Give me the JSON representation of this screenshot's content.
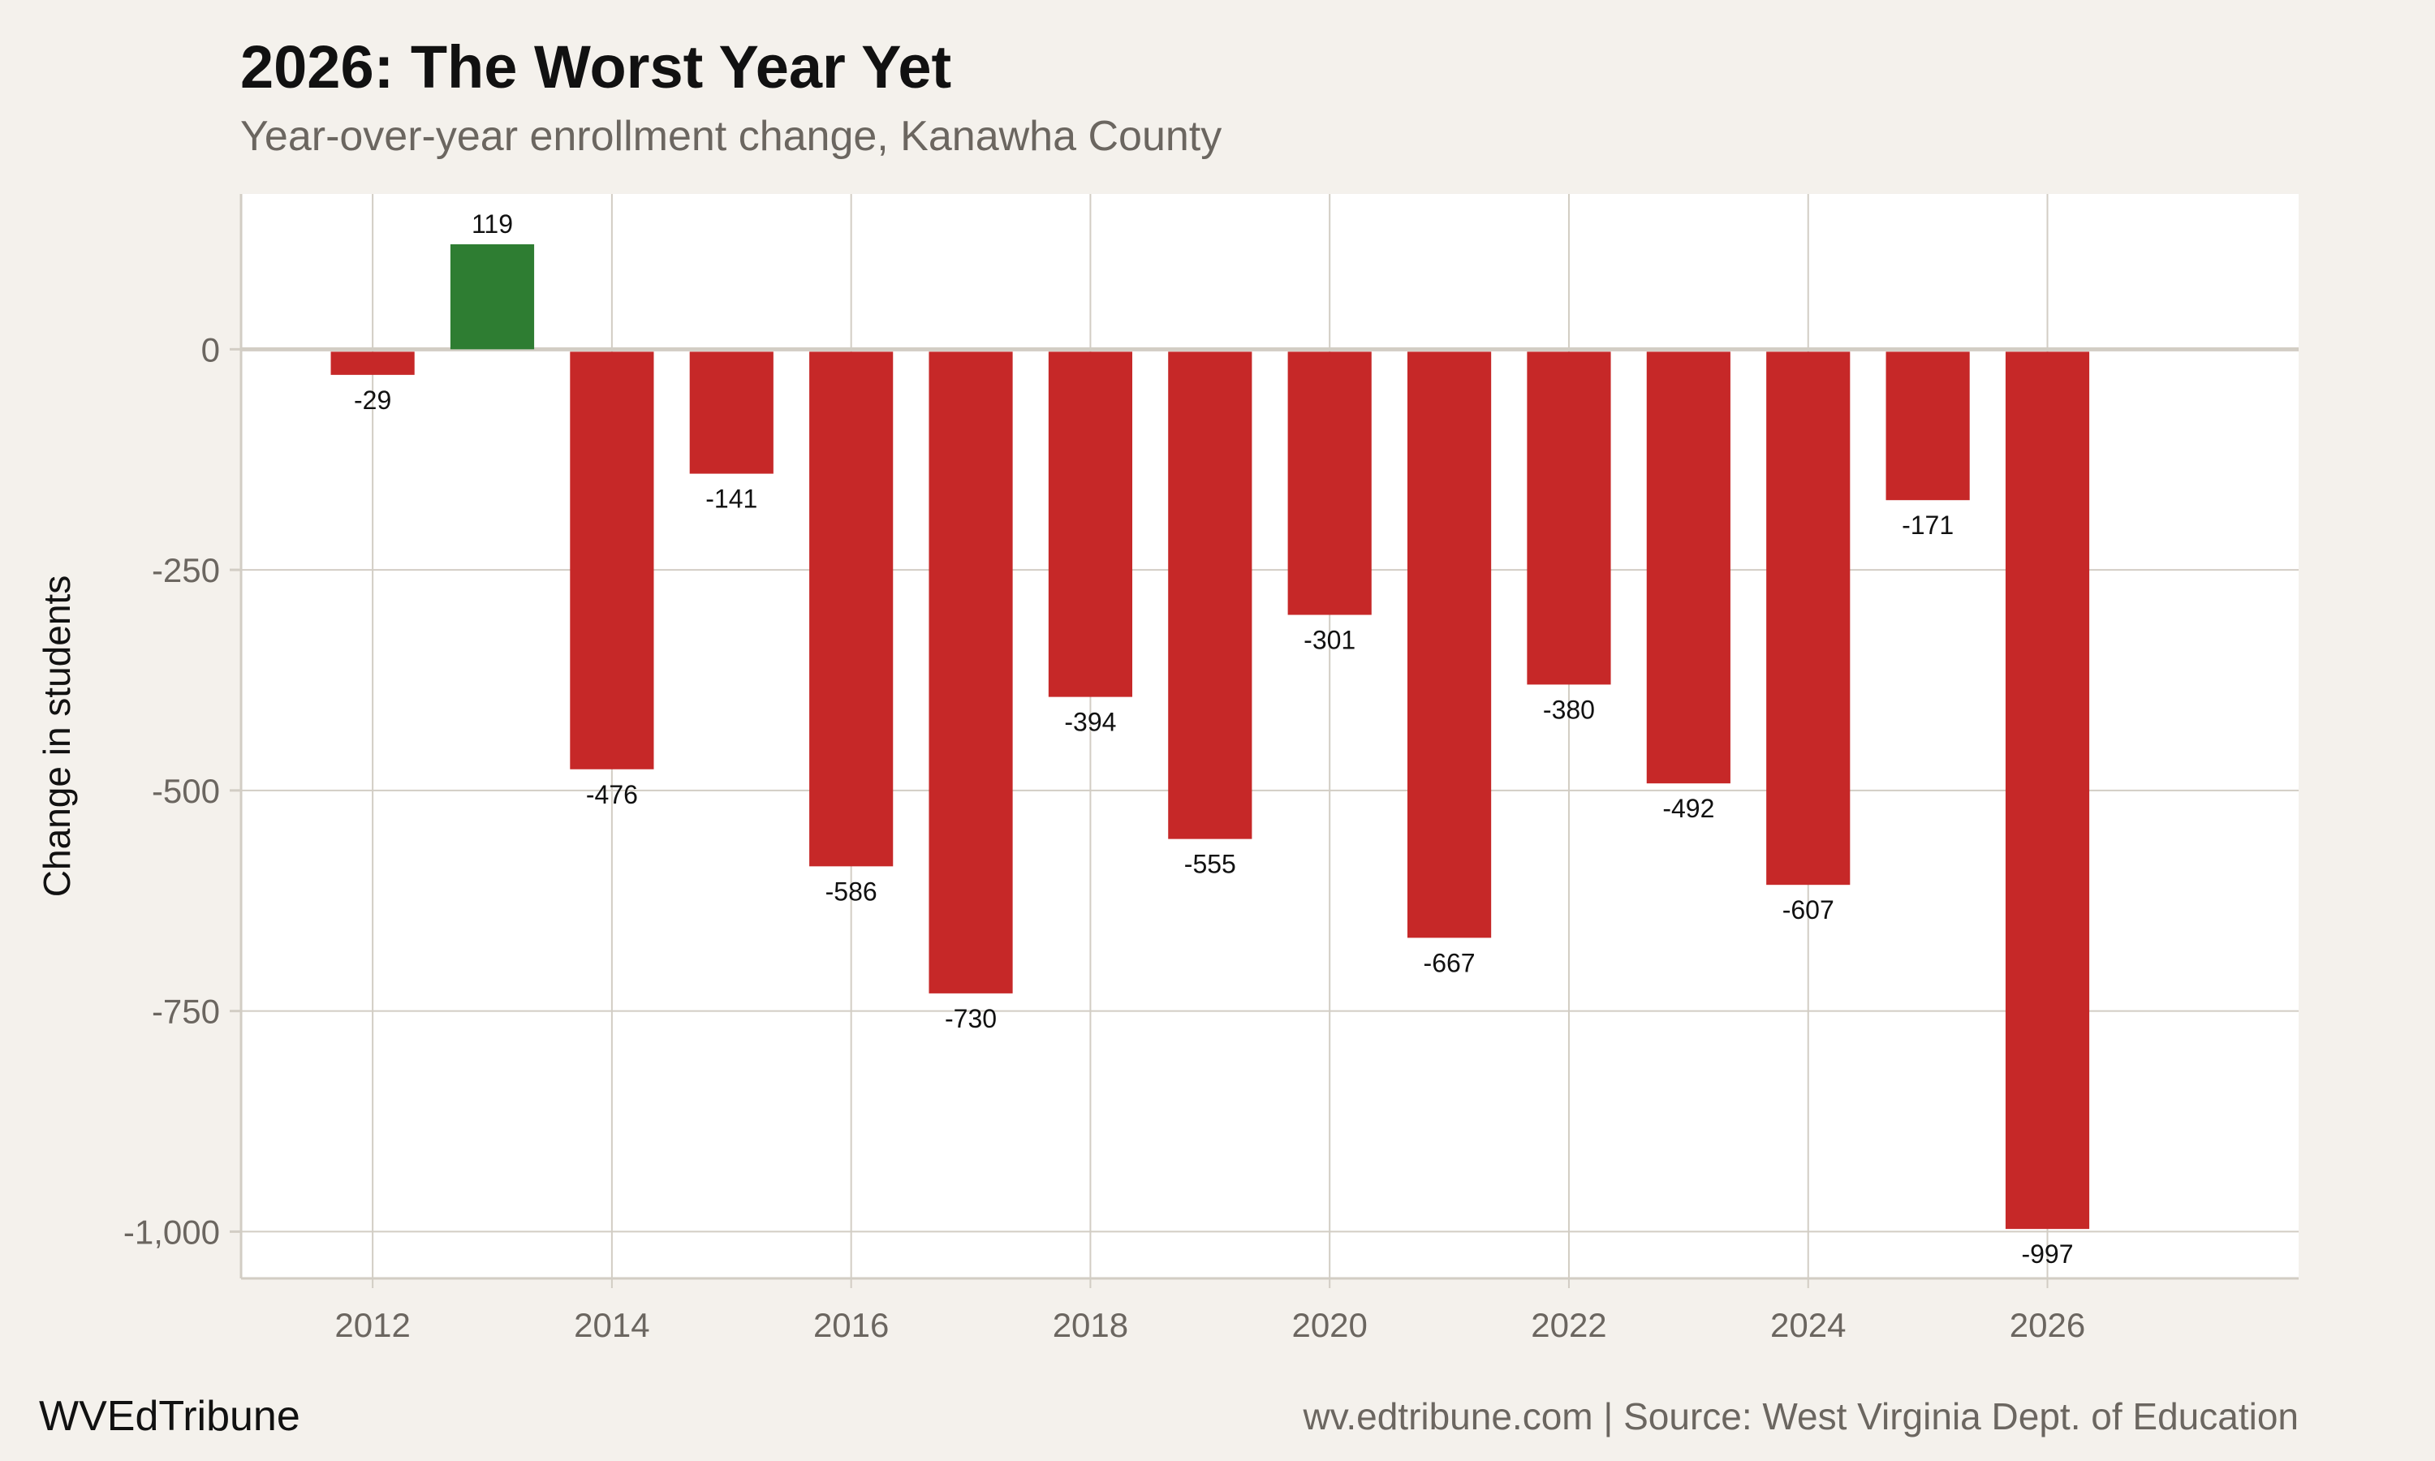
{
  "chart_data": {
    "type": "bar",
    "title": "2026: The Worst Year Yet",
    "subtitle": "Year-over-year enrollment change, Kanawha County",
    "xlabel": "",
    "ylabel": "Change in students",
    "x": [
      2012,
      2013,
      2014,
      2015,
      2016,
      2017,
      2018,
      2019,
      2020,
      2021,
      2022,
      2023,
      2024,
      2025,
      2026
    ],
    "values": [
      -29,
      119,
      -476,
      -141,
      -586,
      -730,
      -394,
      -555,
      -301,
      -667,
      -380,
      -492,
      -607,
      -171,
      -997
    ],
    "data_labels": [
      "-29",
      "119",
      "-476",
      "-141",
      "-586",
      "-730",
      "-394",
      "-555",
      "-301",
      "-667",
      "-380",
      "-492",
      "-607",
      "-171",
      "-997"
    ],
    "xticks": [
      "2012",
      "2014",
      "2016",
      "2018",
      "2020",
      "2022",
      "2024",
      "2026"
    ],
    "yticks": [
      "0",
      "-250",
      "-500",
      "-750",
      "-1,000"
    ],
    "ytick_values": [
      0,
      -250,
      -500,
      -750,
      -1000
    ],
    "ylim": [
      -1053,
      176
    ],
    "xlim": [
      2010.9,
      2028.1
    ],
    "grid": true,
    "colors": {
      "positive": "#2e7d32",
      "negative": "#c62828",
      "background": "#f4f1ec",
      "panel": "#ffffff",
      "grid": "#d2cdc4"
    }
  },
  "footer": {
    "brand": "WVEdTribune",
    "source": "wv.edtribune.com | Source: West Virginia Dept. of Education"
  }
}
